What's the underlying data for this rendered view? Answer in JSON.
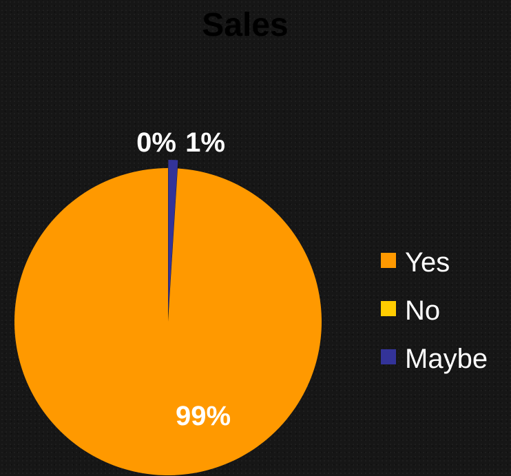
{
  "chart_data": {
    "type": "pie",
    "title": "Sales",
    "categories": [
      "Yes",
      "No",
      "Maybe"
    ],
    "values": [
      99,
      0,
      1
    ],
    "data_labels": [
      "99%",
      "0%",
      "1%"
    ],
    "colors": [
      "#ff9900",
      "#ffcc00",
      "#333399"
    ],
    "legend_placement": "right"
  }
}
